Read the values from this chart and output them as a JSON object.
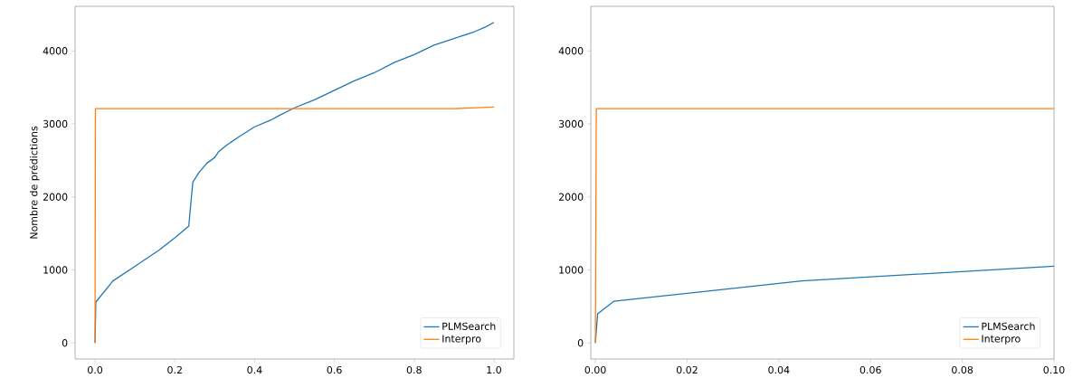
{
  "chart_data": [
    {
      "type": "line",
      "ylabel": "Nombre de prédictions",
      "xlim": [
        -0.05,
        1.05
      ],
      "ylim": [
        -220,
        4610
      ],
      "xticks": [
        {
          "value": 0,
          "label": "0.0"
        },
        {
          "value": 0.2,
          "label": "0.2"
        },
        {
          "value": 0.4,
          "label": "0.4"
        },
        {
          "value": 0.6,
          "label": "0.6"
        },
        {
          "value": 0.8,
          "label": "0.8"
        },
        {
          "value": 1,
          "label": "1.0"
        }
      ],
      "yticks": [
        0,
        1000,
        2000,
        3000,
        4000
      ],
      "legend": "bottom right",
      "grid": false,
      "line_style": "solid",
      "series": [
        {
          "name": "PLMSearch",
          "color": "#1f77b4",
          "x": [
            0,
            0.001,
            0.002,
            0.045,
            0.1,
            0.16,
            0.2,
            0.235,
            0.245,
            0.26,
            0.28,
            0.3,
            0.31,
            0.33,
            0.36,
            0.4,
            0.44,
            0.46,
            0.5,
            0.55,
            0.6,
            0.65,
            0.7,
            0.75,
            0.8,
            0.85,
            0.9,
            0.95,
            0.98,
            1.0
          ],
          "values": [
            0,
            null,
            560,
            850,
            1050,
            1270,
            1440,
            1600,
            2200,
            2330,
            2460,
            2540,
            2620,
            2710,
            2820,
            2960,
            3050,
            3110,
            3220,
            3330,
            3460,
            3590,
            3700,
            3840,
            3950,
            4080,
            4170,
            4260,
            4330,
            4390
          ]
        },
        {
          "name": "Interpro",
          "color": "#ff7f0e",
          "x": [
            0,
            0.001,
            0.9,
            0.95,
            1.0
          ],
          "values": [
            0,
            3210,
            3210,
            3220,
            3230
          ]
        }
      ]
    },
    {
      "type": "line",
      "xlim": [
        -0.001,
        0.1
      ],
      "ylim": [
        -220,
        4610
      ],
      "xticks": [
        {
          "value": 0,
          "label": "0.00"
        },
        {
          "value": 0.02,
          "label": "0.02"
        },
        {
          "value": 0.04,
          "label": "0.04"
        },
        {
          "value": 0.06,
          "label": "0.06"
        },
        {
          "value": 0.08,
          "label": "0.08"
        },
        {
          "value": 0.1,
          "label": "0.10"
        }
      ],
      "yticks": [
        0,
        1000,
        2000,
        3000,
        4000
      ],
      "legend": "bottom right",
      "grid": false,
      "line_style": "solid",
      "series": [
        {
          "name": "PLMSearch",
          "color": "#1f77b4",
          "x": [
            0,
            0.0005,
            0.004,
            0.045,
            0.1
          ],
          "values": [
            0,
            400,
            570,
            850,
            1050
          ]
        },
        {
          "name": "Interpro",
          "color": "#ff7f0e",
          "x": [
            0,
            0.0002,
            0.1
          ],
          "values": [
            0,
            3210,
            3210
          ]
        }
      ]
    }
  ]
}
